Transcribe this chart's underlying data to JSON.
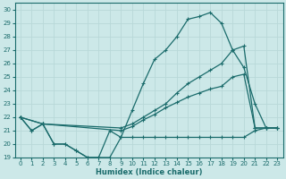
{
  "xlabel": "Humidex (Indice chaleur)",
  "xlim": [
    -0.5,
    23.5
  ],
  "ylim": [
    19,
    30.5
  ],
  "yticks": [
    19,
    20,
    21,
    22,
    23,
    24,
    25,
    26,
    27,
    28,
    29,
    30
  ],
  "xticks": [
    0,
    1,
    2,
    3,
    4,
    5,
    6,
    7,
    8,
    9,
    10,
    11,
    12,
    13,
    14,
    15,
    16,
    17,
    18,
    19,
    20,
    21,
    22,
    23
  ],
  "background_color": "#cce8e8",
  "grid_color": "#b8d8d8",
  "line_color": "#1a6b6b",
  "curve1_x": [
    0,
    1,
    2,
    3,
    4,
    5,
    6,
    7,
    8,
    9,
    10,
    11,
    12,
    13,
    14,
    15,
    16,
    17,
    18,
    19,
    20,
    21,
    22,
    23
  ],
  "curve1_y": [
    22,
    21,
    21.5,
    20,
    20,
    19.5,
    19,
    19,
    19,
    20.5,
    22.5,
    24.5,
    26.3,
    27,
    28,
    29.3,
    29.5,
    29.8,
    29,
    27,
    25.7,
    23,
    21.2,
    21.2
  ],
  "curve2_x": [
    0,
    2,
    9,
    10,
    11,
    12,
    13,
    14,
    15,
    16,
    17,
    18,
    19,
    20,
    21,
    22,
    23
  ],
  "curve2_y": [
    22,
    21.5,
    21.2,
    21.5,
    22,
    22.5,
    23,
    23.8,
    24.5,
    25,
    25.5,
    26,
    27,
    27.3,
    21.2,
    21.2,
    21.2
  ],
  "curve3_x": [
    0,
    2,
    9,
    10,
    11,
    12,
    13,
    14,
    15,
    16,
    17,
    18,
    19,
    20,
    21,
    22,
    23
  ],
  "curve3_y": [
    22,
    21.5,
    21,
    21.3,
    21.8,
    22.2,
    22.7,
    23.1,
    23.5,
    23.8,
    24.1,
    24.3,
    25,
    25.2,
    21.2,
    21.2,
    21.2
  ],
  "curve4_x": [
    0,
    1,
    2,
    3,
    4,
    5,
    6,
    7,
    8,
    9,
    10,
    11,
    12,
    13,
    14,
    15,
    16,
    17,
    18,
    19,
    20,
    21,
    22,
    23
  ],
  "curve4_y": [
    22,
    21,
    21.5,
    20,
    20,
    19.5,
    19,
    19,
    21,
    20.5,
    20.5,
    20.5,
    20.5,
    20.5,
    20.5,
    20.5,
    20.5,
    20.5,
    20.5,
    20.5,
    20.5,
    21,
    21.2,
    21.2
  ]
}
